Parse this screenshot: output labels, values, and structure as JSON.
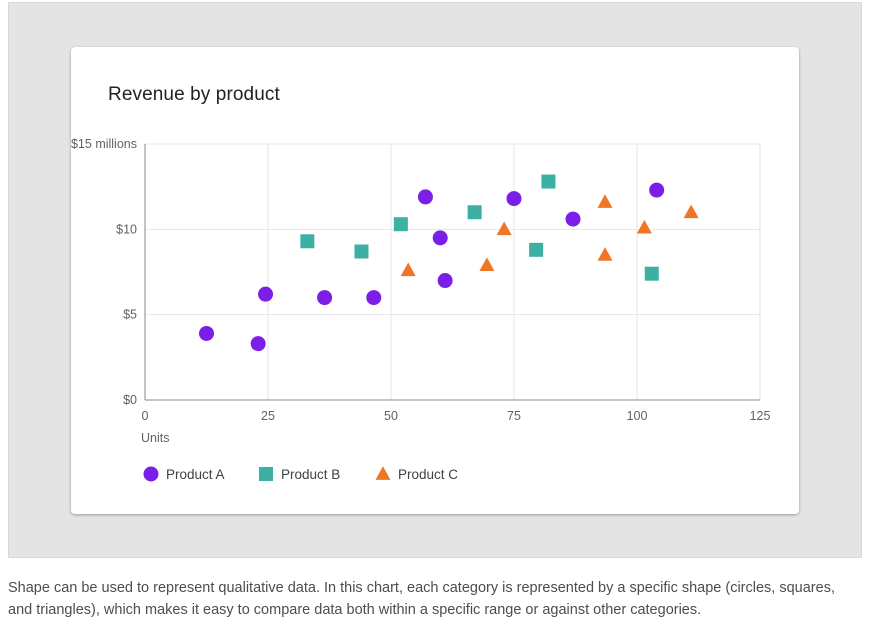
{
  "title": "Revenue by product",
  "caption": "Shape can be used to represent qualitative data. In this chart, each category is represented by a specific shape (circles, squares, and triangles), which makes it easy to compare data both within a specific range or against other categories.",
  "chart_data": {
    "type": "scatter",
    "title": "Revenue by product",
    "xlabel": "Units",
    "ylabel": "",
    "xlim": [
      0,
      125
    ],
    "ylim": [
      0,
      15
    ],
    "xticks": [
      0,
      25,
      50,
      75,
      100,
      125
    ],
    "xtick_labels": [
      "0",
      "25",
      "50",
      "75",
      "100",
      "125"
    ],
    "yticks": [
      0,
      5,
      10,
      15
    ],
    "ytick_labels": [
      "$0",
      "$5",
      "$10",
      "$15 millions"
    ],
    "grid": true,
    "legend_position": "bottom-left",
    "series": [
      {
        "name": "Product A",
        "marker": "circle",
        "color": "#7b1fe8",
        "points": [
          [
            12.5,
            3.9
          ],
          [
            23,
            3.3
          ],
          [
            24.5,
            6.2
          ],
          [
            36.5,
            6.0
          ],
          [
            46.5,
            6.0
          ],
          [
            57,
            11.9
          ],
          [
            60,
            9.5
          ],
          [
            61,
            7.0
          ],
          [
            75,
            11.8
          ],
          [
            87,
            10.6
          ],
          [
            104,
            12.3
          ]
        ]
      },
      {
        "name": "Product B",
        "marker": "square",
        "color": "#3db0a4",
        "points": [
          [
            33,
            9.3
          ],
          [
            44,
            8.7
          ],
          [
            52,
            10.3
          ],
          [
            67,
            11.0
          ],
          [
            79.5,
            8.8
          ],
          [
            82,
            12.8
          ],
          [
            103,
            7.4
          ]
        ]
      },
      {
        "name": "Product C",
        "marker": "triangle",
        "color": "#ee7625",
        "points": [
          [
            53.5,
            7.6
          ],
          [
            69.5,
            7.9
          ],
          [
            73,
            10.0
          ],
          [
            93.5,
            11.6
          ],
          [
            93.5,
            8.5
          ],
          [
            101.5,
            10.1
          ],
          [
            111,
            11.0
          ]
        ]
      }
    ]
  }
}
